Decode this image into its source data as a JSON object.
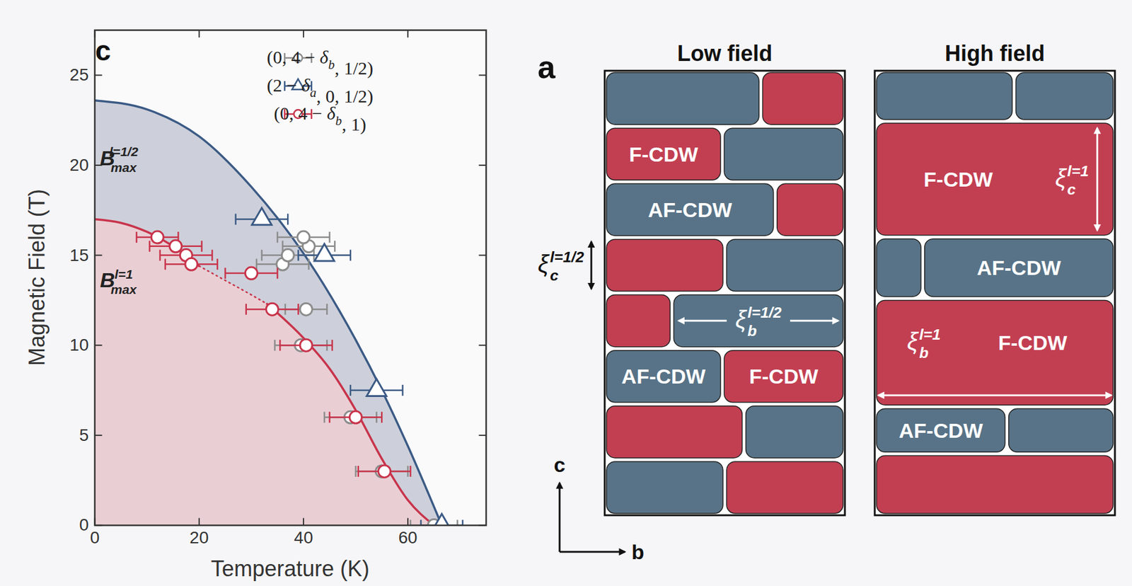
{
  "chart_data": {
    "type": "scatter",
    "panel": "c",
    "xlabel": "Temperature (K)",
    "ylabel": "Magnetic Field (T)",
    "xlim": [
      0,
      75
    ],
    "ylim": [
      0,
      27.5
    ],
    "xticks": [
      0,
      20,
      40,
      60
    ],
    "yticks": [
      0,
      5,
      10,
      15,
      20,
      25
    ],
    "legend": "top-right",
    "series": [
      {
        "name": "(0, 4 − δb, 1/2)",
        "color": "#8c8c8c",
        "marker": "circle",
        "x": [
          65,
          55,
          49,
          39.5,
          40.5,
          36,
          37,
          41,
          40
        ],
        "y": [
          0,
          3,
          6,
          10,
          12,
          14.5,
          15,
          15.5,
          16
        ],
        "xerr": [
          4.5,
          5,
          5,
          5,
          4,
          5,
          5,
          5,
          5
        ]
      },
      {
        "name": "(2 − δa, 0, 1/2)",
        "color": "#3b5a85",
        "marker": "triangle",
        "x": [
          32,
          44,
          54,
          66.5
        ],
        "y": [
          17,
          15,
          7.5,
          0
        ],
        "xerr": [
          5,
          5,
          5,
          4
        ]
      },
      {
        "name": "(0, 4 − δb, 1)",
        "color": "#c8344b",
        "marker": "circle",
        "x": [
          12,
          15.5,
          17.5,
          18.5,
          30,
          34,
          40.5,
          50,
          55.5
        ],
        "y": [
          16,
          15.5,
          15,
          14.5,
          14,
          12,
          10,
          6,
          3
        ],
        "xerr": [
          4,
          5,
          5,
          5,
          5,
          5,
          5,
          5,
          5
        ]
      }
    ],
    "boundaries": [
      {
        "color": "#3b5a85",
        "fill": "#cdd0da",
        "segments": [
          {
            "line_style": "solid",
            "x": [
              0,
              10,
              20,
              30,
              40,
              50,
              55,
              60,
              66.5
            ],
            "y": [
              23.6,
              23.1,
              21.6,
              18.8,
              15.1,
              10.3,
              7.5,
              4.4,
              0
            ]
          }
        ]
      },
      {
        "color": "#c8344b",
        "fill": "#e9cfd4",
        "segments": [
          {
            "line_style": "solid",
            "x": [
              0,
              5,
              10,
              15,
              20
            ],
            "y": [
              17,
              16.8,
              16.3,
              15.5,
              14.4
            ]
          },
          {
            "line_style": "dotted",
            "x": [
              20,
              25,
              30,
              33
            ],
            "y": [
              14.4,
              13.6,
              12.8,
              12.3
            ]
          },
          {
            "line_style": "solid",
            "x": [
              33,
              40,
              45,
              50,
              55,
              60,
              65
            ],
            "y": [
              12.3,
              10.4,
              8.7,
              6.4,
              3.7,
              1.4,
              0
            ]
          }
        ]
      }
    ],
    "annotations": [
      {
        "text": "B",
        "sup": "l=1/2",
        "sub": "max",
        "x": 2.5,
        "y": 20.4
      },
      {
        "text": "B",
        "sup": "l=1",
        "sub": "max",
        "x": 2.5,
        "y": 13.6
      }
    ]
  },
  "diagram": {
    "panel": "a",
    "axes": {
      "vertical": "c",
      "horizontal": "b"
    },
    "types": {
      "F": {
        "label": "F-CDW",
        "color": "#c23f52"
      },
      "AF": {
        "label": "AF-CDW",
        "color": "#587387"
      }
    },
    "panels": [
      {
        "title": "Low field",
        "rows": [
          [
            "AF",
            "F"
          ],
          [
            "F",
            "AF"
          ],
          [
            "AF",
            "F"
          ],
          [
            "F",
            "AF"
          ],
          [
            "F",
            "AF"
          ],
          [
            "AF",
            "F"
          ],
          [
            "F",
            "AF"
          ],
          [
            "AF",
            "F"
          ]
        ],
        "labeled": [
          [
            1,
            0
          ],
          [
            2,
            0
          ],
          [
            5,
            0
          ],
          [
            5,
            1
          ]
        ],
        "lengths": [
          {
            "symbol": "ξ",
            "sub": "c",
            "sup": "l=1/2",
            "direction": "c"
          },
          {
            "symbol": "ξ",
            "sub": "b",
            "sup": "l=1/2",
            "direction": "b"
          }
        ]
      },
      {
        "title": "High field",
        "rows": [
          [
            "AF",
            "AF"
          ],
          [
            "F"
          ],
          [
            "AF",
            "AF"
          ],
          [
            "F"
          ],
          [
            "AF",
            "AF"
          ],
          [
            "F"
          ]
        ],
        "labeled": [
          [
            1,
            0
          ],
          [
            2,
            1
          ],
          [
            3,
            0
          ],
          [
            4,
            0
          ]
        ],
        "lengths": [
          {
            "symbol": "ξ",
            "sub": "c",
            "sup": "l=1",
            "direction": "c"
          },
          {
            "symbol": "ξ",
            "sub": "b",
            "sup": "l=1",
            "direction": "b"
          }
        ]
      }
    ]
  }
}
